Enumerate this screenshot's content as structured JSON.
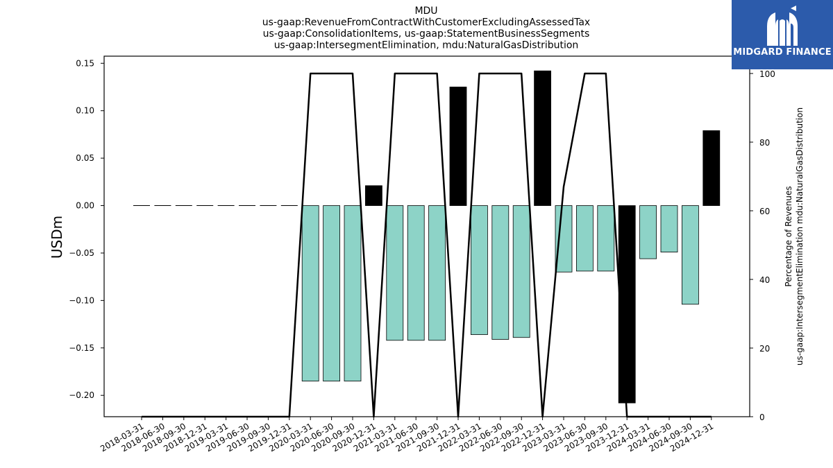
{
  "chart_data": {
    "type": "bar",
    "title_lines": [
      "MDU",
      "us-gaap:RevenueFromContractWithCustomerExcludingAssessedTax",
      "us-gaap:ConsolidationItems, us-gaap:StatementBusinessSegments",
      "us-gaap:IntersegmentElimination, mdu:NaturalGasDistribution"
    ],
    "ylabel": "USDm",
    "ylabel_right": [
      "Percentage of Revenues",
      "us-gaap:IntersegmentElimination mdu:NaturalGasDistribution"
    ],
    "ylim": [
      -0.2225,
      0.1575
    ],
    "ylim_right": [
      0,
      100
    ],
    "yticks": [
      -0.2,
      -0.15,
      -0.1,
      -0.05,
      0.0,
      0.05,
      0.1,
      0.15
    ],
    "ytick_labels": [
      "−0.20",
      "−0.15",
      "−0.10",
      "−0.05",
      "0.00",
      "0.05",
      "0.10",
      "0.15"
    ],
    "yticks_right": [
      0,
      20,
      40,
      60,
      80,
      100
    ],
    "ytick_labels_right": [
      "0",
      "20",
      "40",
      "60",
      "80",
      "100"
    ],
    "categories": [
      "2018-03-31",
      "2018-06-30",
      "2018-09-30",
      "2018-12-31",
      "2019-03-31",
      "2019-06-30",
      "2019-09-30",
      "2019-12-31",
      "2020-03-31",
      "2020-06-30",
      "2020-09-30",
      "2020-12-31",
      "2021-03-31",
      "2021-06-30",
      "2021-09-30",
      "2021-12-31",
      "2022-03-31",
      "2022-06-30",
      "2022-09-30",
      "2022-12-31",
      "2023-03-31",
      "2023-06-30",
      "2023-09-30",
      "2023-12-31",
      "2024-03-31",
      "2024-06-30",
      "2024-09-30",
      "2024-12-31"
    ],
    "bars": [
      {
        "x": "2018-03-31",
        "value": 0.0,
        "color": "#8dd3c7"
      },
      {
        "x": "2018-06-30",
        "value": 0.0,
        "color": "#8dd3c7"
      },
      {
        "x": "2018-09-30",
        "value": 0.0,
        "color": "#8dd3c7"
      },
      {
        "x": "2018-12-31",
        "value": 0.0,
        "color": "#8dd3c7"
      },
      {
        "x": "2019-03-31",
        "value": 0.0,
        "color": "#8dd3c7"
      },
      {
        "x": "2019-06-30",
        "value": 0.0,
        "color": "#8dd3c7"
      },
      {
        "x": "2019-09-30",
        "value": 0.0,
        "color": "#8dd3c7"
      },
      {
        "x": "2019-12-31",
        "value": 0.0,
        "color": "#8dd3c7"
      },
      {
        "x": "2020-03-31",
        "value": -0.185,
        "color": "#8dd3c7"
      },
      {
        "x": "2020-06-30",
        "value": -0.185,
        "color": "#8dd3c7"
      },
      {
        "x": "2020-09-30",
        "value": -0.185,
        "color": "#8dd3c7"
      },
      {
        "x": "2020-12-31",
        "value": 0.021,
        "color": "#000000"
      },
      {
        "x": "2021-03-31",
        "value": -0.142,
        "color": "#8dd3c7"
      },
      {
        "x": "2021-06-30",
        "value": -0.142,
        "color": "#8dd3c7"
      },
      {
        "x": "2021-09-30",
        "value": -0.142,
        "color": "#8dd3c7"
      },
      {
        "x": "2021-12-31",
        "value": 0.125,
        "color": "#000000"
      },
      {
        "x": "2022-03-31",
        "value": -0.136,
        "color": "#8dd3c7"
      },
      {
        "x": "2022-06-30",
        "value": -0.141,
        "color": "#8dd3c7"
      },
      {
        "x": "2022-09-30",
        "value": -0.139,
        "color": "#8dd3c7"
      },
      {
        "x": "2022-12-31",
        "value": 0.142,
        "color": "#000000"
      },
      {
        "x": "2023-03-31",
        "value": -0.07,
        "color": "#8dd3c7"
      },
      {
        "x": "2023-06-30",
        "value": -0.069,
        "color": "#8dd3c7"
      },
      {
        "x": "2023-09-30",
        "value": -0.069,
        "color": "#8dd3c7"
      },
      {
        "x": "2023-12-31",
        "value": -0.208,
        "color": "#000000"
      },
      {
        "x": "2024-03-31",
        "value": -0.056,
        "color": "#8dd3c7"
      },
      {
        "x": "2024-06-30",
        "value": -0.049,
        "color": "#8dd3c7"
      },
      {
        "x": "2024-09-30",
        "value": -0.104,
        "color": "#8dd3c7"
      },
      {
        "x": "2024-12-31",
        "value": 0.079,
        "color": "#000000"
      }
    ],
    "line": {
      "axis": "right",
      "values": [
        0,
        0,
        0,
        0,
        0,
        0,
        0,
        0,
        100,
        100,
        100,
        0,
        100,
        100,
        100,
        0,
        100,
        100,
        100,
        0,
        67,
        100,
        100,
        0,
        0,
        0,
        0,
        0
      ]
    },
    "grid": false,
    "legend": "none"
  },
  "logo": {
    "text": "MIDGARD FINANCE",
    "background": "#2c5bab"
  }
}
